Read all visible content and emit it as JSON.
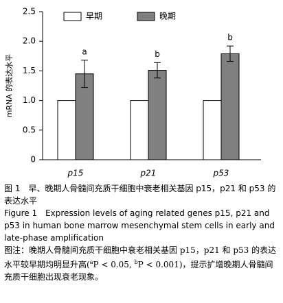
{
  "chart_data": {
    "type": "bar",
    "y_label": "mRNA 的表达水平",
    "categories": [
      "p15",
      "p21",
      "p53"
    ],
    "series": [
      {
        "name": "早期",
        "color": "#ffffff",
        "values": [
          1,
          1,
          1
        ]
      },
      {
        "name": "晚期",
        "color": "#808080",
        "values": [
          1.45,
          1.51,
          1.79
        ],
        "errors": [
          0.23,
          0.13,
          0.13
        ],
        "significance": [
          "a",
          "b",
          "b"
        ]
      }
    ],
    "ylim": [
      0,
      2.5
    ],
    "yticks": [
      0,
      0.5,
      {
        "value": 1,
        "label": "1.0"
      },
      1.5,
      {
        "value": 2,
        "label": "2.0"
      },
      2.5
    ],
    "legend": "top"
  },
  "caption": {
    "cn": "图 1　早、晚期人骨髓间充质干细胞中衰老相关基因 p15，p21 和 p53 的表达水平",
    "en": "Figure 1　Expression levels of aging related genes p15, p21 and p53 in human bone marrow mesenchymal stem cells in early and late-phase amplification",
    "note": [
      "图注：晚期人骨髓间充质干细胞中衰老相关基因 p15，p21 和 p53 的表达水平较早期均明显升高(",
      "a",
      "P < 0.05, ",
      "b",
      "P < 0.001)，提示扩增晚期人骨髓间充质干细胞出现衰老现象。"
    ]
  }
}
